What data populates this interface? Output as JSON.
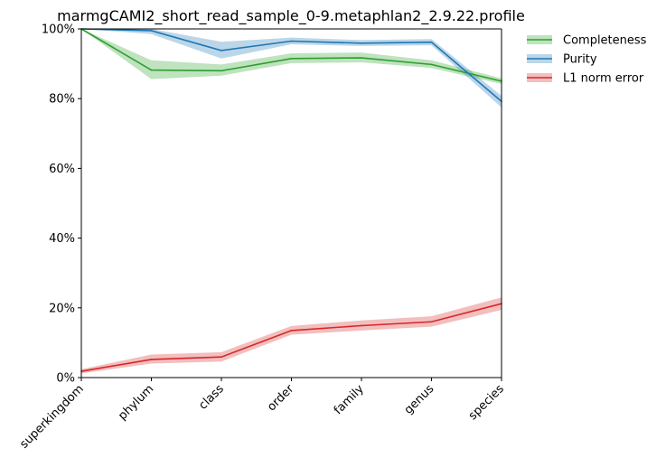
{
  "chart_data": {
    "type": "line",
    "title": "marmgCAMI2_short_read_sample_0-9.metaphlan2_2.9.22.profile",
    "xlabel": "",
    "ylabel": "",
    "categories": [
      "superkingdom",
      "phylum",
      "class",
      "order",
      "family",
      "genus",
      "species"
    ],
    "ylim": [
      0,
      100
    ],
    "yticks": [
      0,
      20,
      40,
      60,
      80,
      100
    ],
    "ytick_labels": [
      "0%",
      "20%",
      "40%",
      "60%",
      "80%",
      "100%"
    ],
    "grid": false,
    "legend_position": "outside-top-right",
    "series": [
      {
        "name": "Completeness",
        "color": "#2ca02c",
        "values": [
          100,
          88.2,
          88.0,
          91.5,
          91.7,
          89.8,
          85.0
        ],
        "lower": [
          100,
          85.6,
          86.6,
          90.2,
          90.4,
          88.8,
          84.2
        ],
        "upper": [
          100,
          91.0,
          89.8,
          93.0,
          93.2,
          91.0,
          85.8
        ]
      },
      {
        "name": "Purity",
        "color": "#1f77b4",
        "values": [
          100,
          99.5,
          93.8,
          96.5,
          95.9,
          96.2,
          79.2
        ],
        "lower": [
          100,
          98.5,
          91.5,
          95.6,
          95.1,
          95.3,
          77.5
        ],
        "upper": [
          100,
          100,
          96.3,
          97.5,
          96.8,
          97.1,
          80.8
        ]
      },
      {
        "name": "L1 norm error",
        "color": "#d62728",
        "values": [
          1.8,
          5.2,
          5.9,
          13.5,
          14.9,
          16.0,
          21.2
        ],
        "lower": [
          1.2,
          4.0,
          4.6,
          12.3,
          13.5,
          14.6,
          19.4
        ],
        "upper": [
          2.4,
          6.6,
          7.3,
          14.8,
          16.4,
          17.6,
          23.0
        ]
      }
    ]
  }
}
